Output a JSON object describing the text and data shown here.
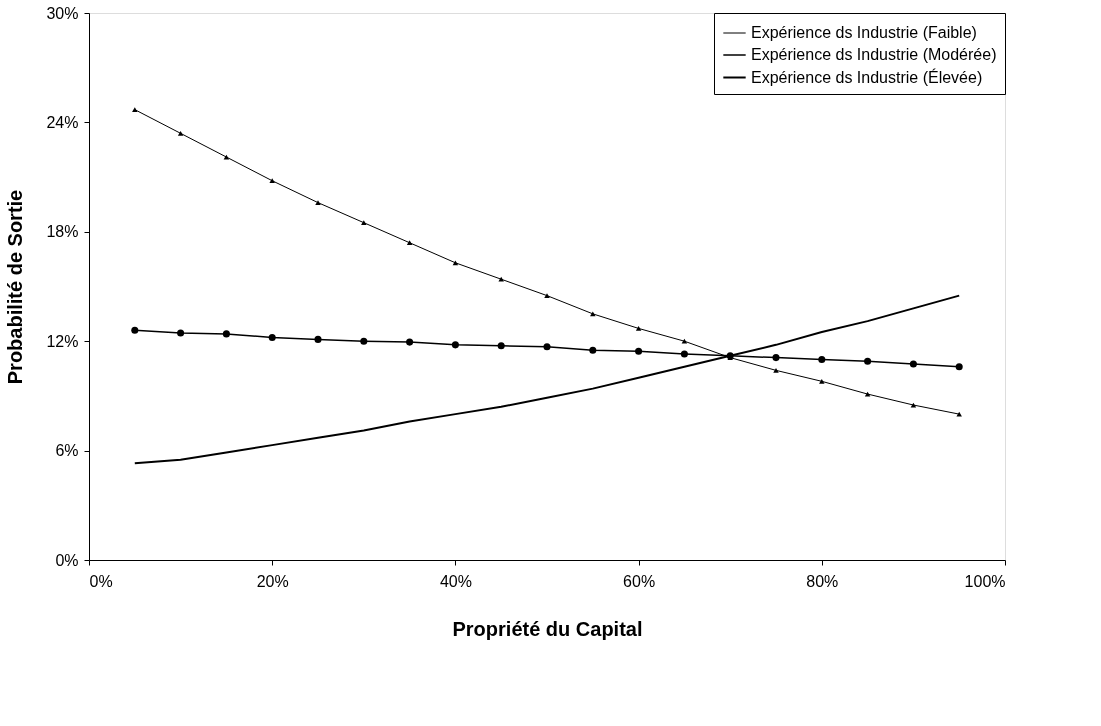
{
  "chart_data": {
    "type": "line",
    "xlabel": "Propriété du Capital",
    "ylabel": "Probabilité de Sortie",
    "x": [
      5,
      10,
      15,
      20,
      25,
      30,
      35,
      40,
      45,
      50,
      55,
      60,
      65,
      70,
      75,
      80,
      85,
      90,
      95
    ],
    "series": [
      {
        "name": "Expérience ds Industrie (Faible)",
        "color": "#000000",
        "marker": "triangle",
        "values": [
          24.7,
          23.4,
          22.1,
          20.8,
          19.6,
          18.5,
          17.4,
          16.3,
          15.4,
          14.5,
          13.5,
          12.7,
          12.0,
          11.1,
          10.4,
          9.8,
          9.1,
          8.5,
          8.0
        ]
      },
      {
        "name": "Expérience ds Industrie (Modérée)",
        "color": "#000000",
        "marker": "circle",
        "values": [
          12.6,
          12.45,
          12.4,
          12.2,
          12.1,
          12.0,
          11.95,
          11.8,
          11.75,
          11.7,
          11.5,
          11.45,
          11.3,
          11.2,
          11.1,
          11.0,
          10.9,
          10.75,
          10.6
        ]
      },
      {
        "name": "Expérience ds Industrie (Élevée)",
        "color": "#000000",
        "marker": "none",
        "values": [
          5.3,
          5.5,
          5.9,
          6.3,
          6.7,
          7.1,
          7.6,
          8.0,
          8.4,
          8.9,
          9.4,
          10.0,
          10.6,
          11.2,
          11.8,
          12.5,
          13.1,
          13.8,
          14.5
        ]
      }
    ],
    "xlim": [
      0,
      100
    ],
    "ylim": [
      0,
      30
    ],
    "xticks": [
      {
        "value": 0,
        "label": "0%"
      },
      {
        "value": 20,
        "label": "20%"
      },
      {
        "value": 40,
        "label": "40%"
      },
      {
        "value": 60,
        "label": "60%"
      },
      {
        "value": 80,
        "label": "80%"
      },
      {
        "value": 100,
        "label": "100%"
      }
    ],
    "yticks": [
      {
        "value": 0,
        "label": "0%"
      },
      {
        "value": 6,
        "label": "6%"
      },
      {
        "value": 12,
        "label": "12%"
      },
      {
        "value": 18,
        "label": "18%"
      },
      {
        "value": 24,
        "label": "24%"
      },
      {
        "value": 30,
        "label": "30%"
      }
    ],
    "grid": false,
    "legend": "top right",
    "line_style": "solid"
  }
}
